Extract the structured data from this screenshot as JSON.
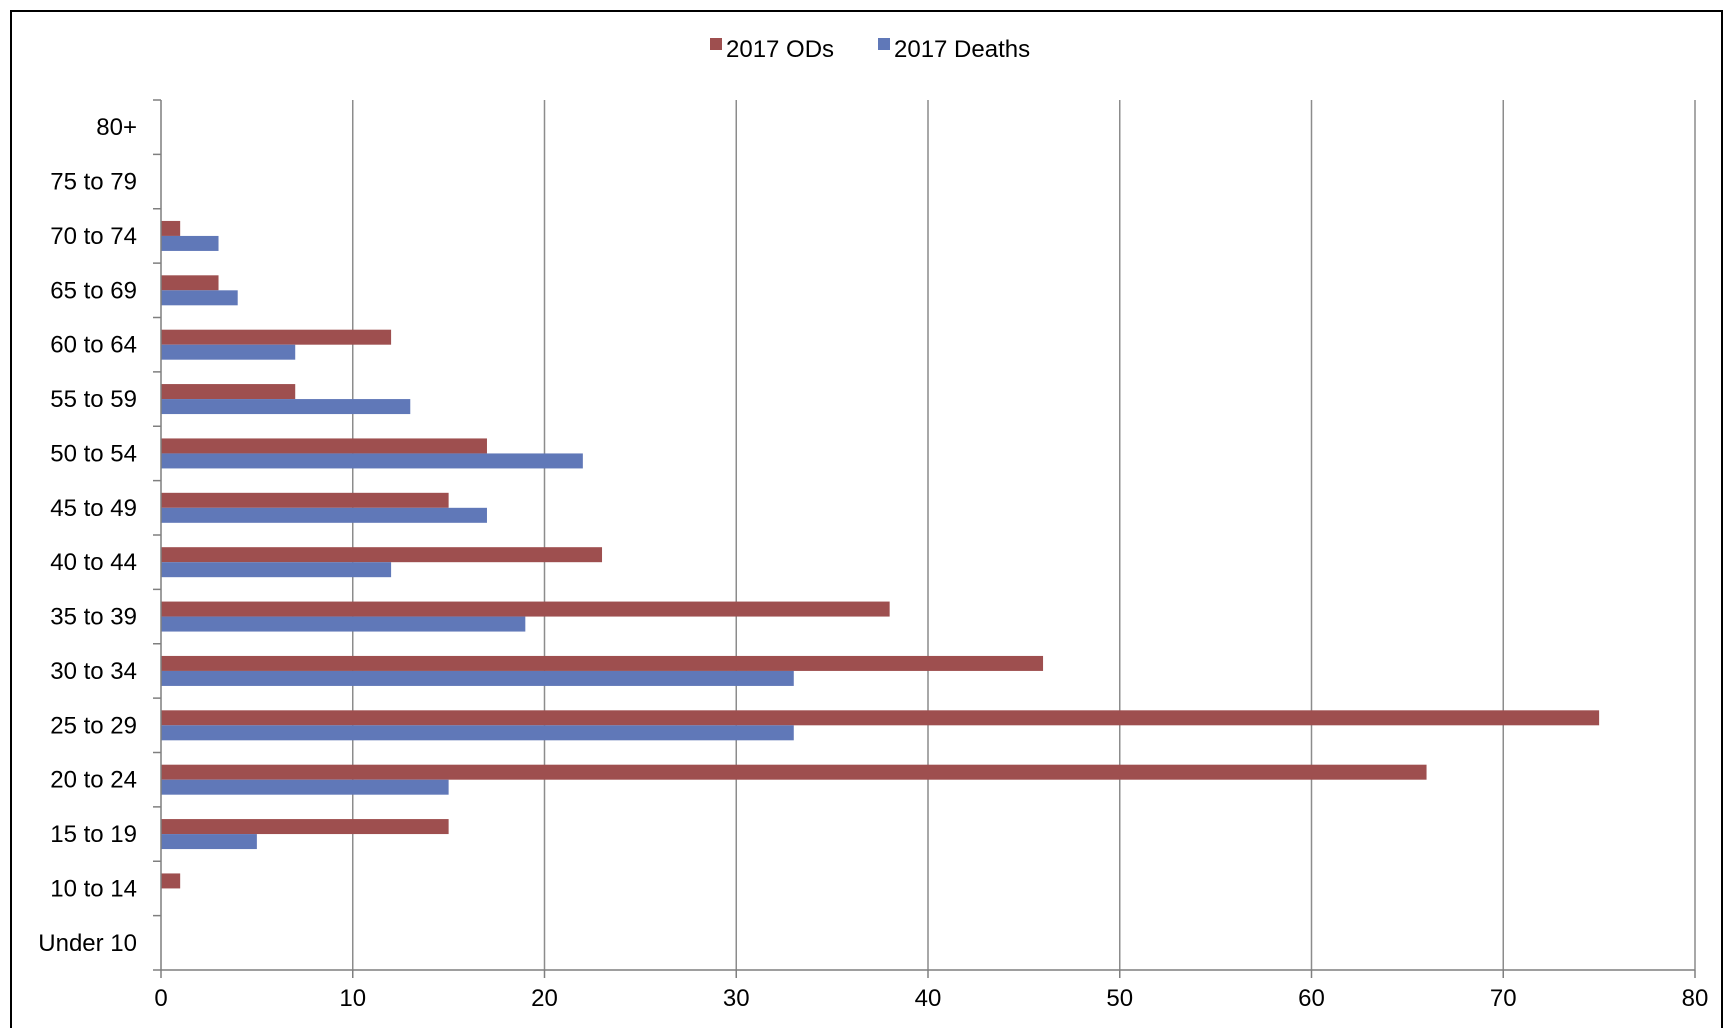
{
  "chart_data": {
    "type": "bar",
    "orientation": "horizontal",
    "categories": [
      "Under 10",
      "10 to 14",
      "15 to 19",
      "20 to 24",
      "25 to 29",
      "30 to 34",
      "35 to 39",
      "40 to 44",
      "45 to 49",
      "50 to 54",
      "55 to 59",
      "60 to 64",
      "65 to 69",
      "70 to 74",
      "75 to 79",
      "80+"
    ],
    "series": [
      {
        "name": "2017 ODs",
        "color": "#9E4F4F",
        "values": [
          0,
          1,
          15,
          66,
          75,
          46,
          38,
          23,
          15,
          17,
          7,
          12,
          3,
          1,
          0,
          0
        ]
      },
      {
        "name": "2017 Deaths",
        "color": "#6078B8",
        "values": [
          0,
          0,
          5,
          15,
          33,
          33,
          19,
          12,
          17,
          22,
          13,
          7,
          4,
          3,
          0,
          0
        ]
      }
    ],
    "xlim": [
      0,
      80
    ],
    "xticks": [
      0,
      10,
      20,
      30,
      40,
      50,
      60,
      70,
      80
    ],
    "grid": true,
    "legend_position": "top-center",
    "title": "",
    "xlabel": "",
    "ylabel": ""
  }
}
